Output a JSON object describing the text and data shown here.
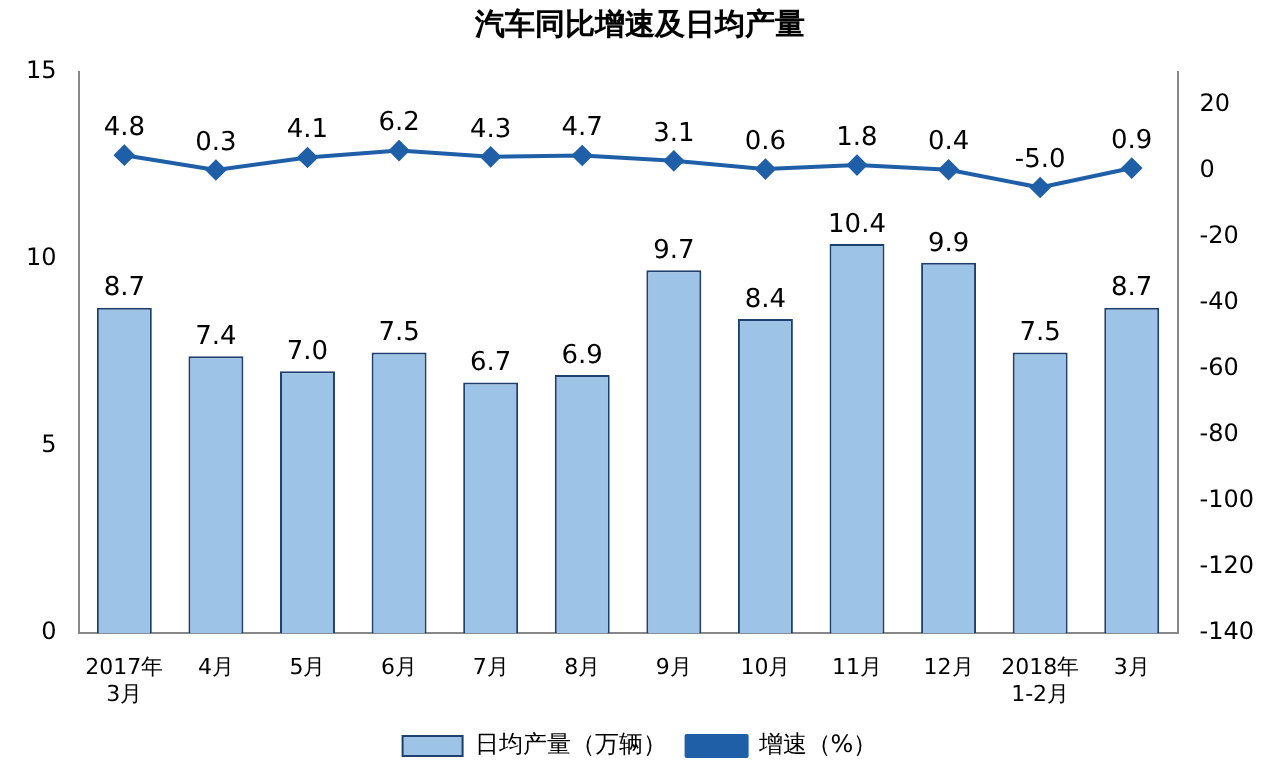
{
  "chart_data": {
    "type": "bar",
    "title": "汽车同比增速及日均产量",
    "categories": [
      "2017年\n3月",
      "4月",
      "5月",
      "6月",
      "7月",
      "8月",
      "9月",
      "10月",
      "11月",
      "12月",
      "2018年\n1-2月",
      "3月"
    ],
    "series": [
      {
        "name": "日均产量（万辆）",
        "color": "#9dc3e6",
        "values": [
          8.7,
          7.4,
          7.0,
          7.5,
          6.7,
          6.9,
          9.7,
          8.4,
          10.4,
          9.9,
          7.5,
          8.7
        ],
        "value_labels": [
          "8.7",
          "7.4",
          "7.0",
          "7.5",
          "6.7",
          "6.9",
          "9.7",
          "8.4",
          "10.4",
          "9.9",
          "7.5",
          "8.7"
        ]
      },
      {
        "name": "增速（%）",
        "type": "line",
        "axis": "y2",
        "color": "#1f5fa8",
        "values": [
          4.8,
          0.3,
          4.1,
          6.2,
          4.3,
          4.7,
          3.1,
          0.6,
          1.8,
          0.4,
          -5.0,
          0.9
        ],
        "value_labels": [
          "4.8",
          "0.3",
          "4.1",
          "6.2",
          "4.3",
          "4.7",
          "3.1",
          "0.6",
          "1.8",
          "0.4",
          "-5.0",
          "0.9"
        ]
      }
    ],
    "ylim": [
      0,
      15
    ],
    "yticks": [
      0,
      5,
      10,
      15
    ],
    "y2lim": [
      -140,
      30
    ],
    "y2ticks": [
      -140,
      -120,
      -100,
      -80,
      -60,
      -40,
      -20,
      0,
      20
    ],
    "grid": false,
    "legend": "bottom",
    "marker": "diamond",
    "line_style": "solid"
  }
}
